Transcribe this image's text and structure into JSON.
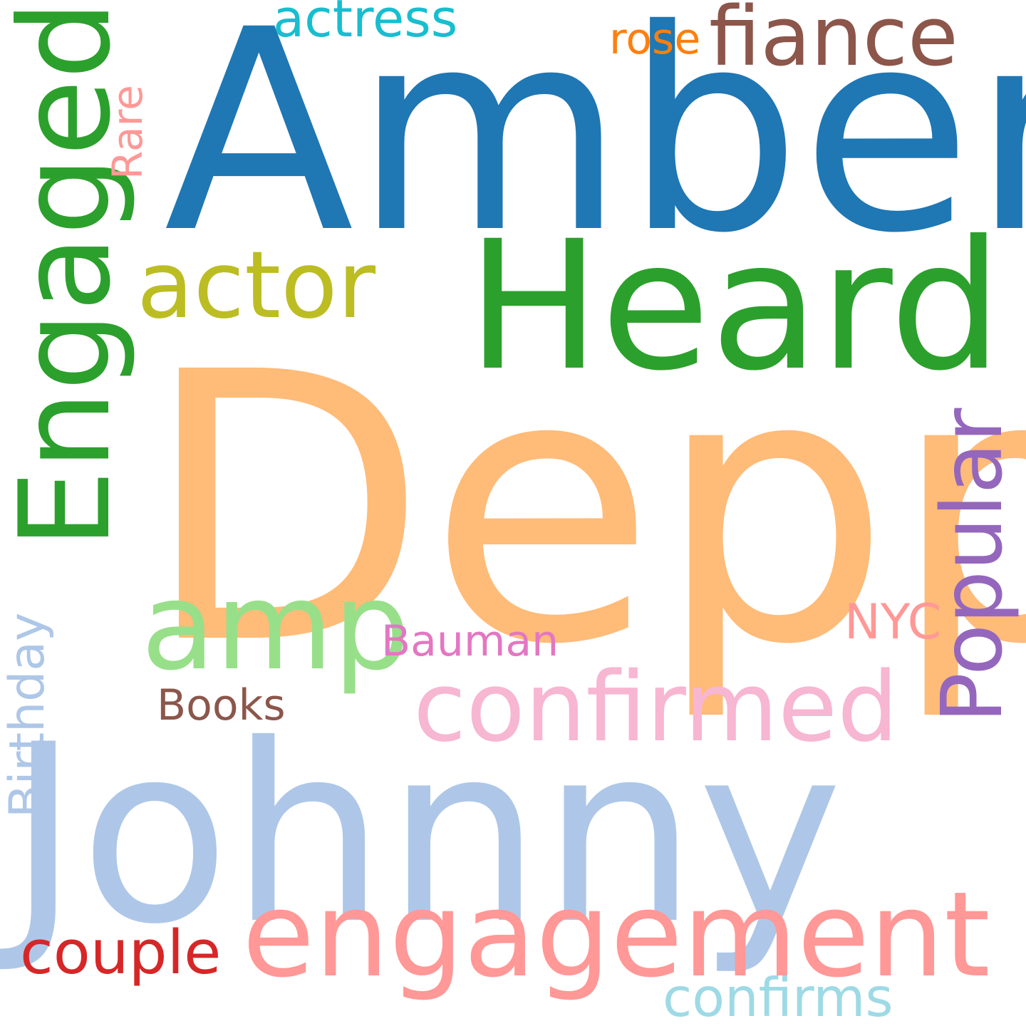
{
  "words": {
    "johnny": {
      "text": "Johnny",
      "color": "#aec7e8",
      "orientation": "horizontal"
    },
    "depp": {
      "text": "Depp",
      "color": "#ffbb78",
      "orientation": "horizontal"
    },
    "amber": {
      "text": "Amber",
      "color": "#1f77b4",
      "orientation": "horizontal"
    },
    "heard": {
      "text": "Heard",
      "color": "#2ca02c",
      "orientation": "horizontal"
    },
    "engaged": {
      "text": "Engaged",
      "color": "#2ca02c",
      "orientation": "vertical"
    },
    "engagement": {
      "text": "engagement",
      "color": "#ff9896",
      "orientation": "horizontal"
    },
    "confirmed": {
      "text": "confirmed",
      "color": "#f7b6d2",
      "orientation": "horizontal"
    },
    "amp": {
      "text": "amp",
      "color": "#98df8a",
      "orientation": "horizontal"
    },
    "actor": {
      "text": "actor",
      "color": "#bcbd22",
      "orientation": "horizontal"
    },
    "popular": {
      "text": "Popular",
      "color": "#9467bd",
      "orientation": "vertical"
    },
    "fiance": {
      "text": "fiance",
      "color": "#8c564b",
      "orientation": "horizontal"
    },
    "couple": {
      "text": "couple",
      "color": "#d62728",
      "orientation": "horizontal"
    },
    "confirms": {
      "text": "confirms",
      "color": "#9edae5",
      "orientation": "horizontal"
    },
    "birthday": {
      "text": "Birthday",
      "color": "#aec7e8",
      "orientation": "vertical"
    },
    "actress": {
      "text": "actress",
      "color": "#17becf",
      "orientation": "horizontal"
    },
    "rose": {
      "text": "rose",
      "color": "#ff7f0e",
      "orientation": "horizontal"
    },
    "bauman": {
      "text": "Bauman",
      "color": "#e377c2",
      "orientation": "horizontal"
    },
    "nyc": {
      "text": "NYC",
      "color": "#ff9896",
      "orientation": "horizontal"
    },
    "books": {
      "text": "Books",
      "color": "#8c564b",
      "orientation": "horizontal"
    },
    "rare": {
      "text": "Rare",
      "color": "#ff9896",
      "orientation": "vertical"
    }
  }
}
